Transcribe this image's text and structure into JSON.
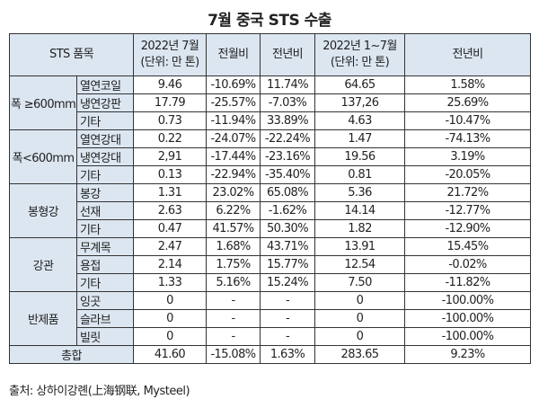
{
  "title": "7월 중국 STS 수출",
  "headers": {
    "item": "STS 품목",
    "jul_line1": "2022년 7월",
    "jul_line2": "(단위: 만 톤)",
    "mom": "전월비",
    "yoy": "전년비",
    "ytd_line1": "2022년 1~7월",
    "ytd_line2": "(단위: 만 톤)",
    "ytd_yoy": "전년비"
  },
  "groups": [
    {
      "name": "폭 ≥600mm",
      "rows": [
        {
          "item": "열연코일",
          "jul": "9.46",
          "mom": "-10.69%",
          "yoy": "11.74%",
          "ytd": "64.65",
          "ytd_yoy": "1.58%"
        },
        {
          "item": "냉연강판",
          "jul": "17.79",
          "mom": "-25.57%",
          "yoy": "-7.03%",
          "ytd": "137,26",
          "ytd_yoy": "25.69%"
        },
        {
          "item": "기타",
          "jul": "0.73",
          "mom": "-11.94%",
          "yoy": "33.89%",
          "ytd": "4.63",
          "ytd_yoy": "-10.47%"
        }
      ]
    },
    {
      "name": "폭<600mm",
      "rows": [
        {
          "item": "열연강대",
          "jul": "0.22",
          "mom": "-24.07%",
          "yoy": "-22.24%",
          "ytd": "1.47",
          "ytd_yoy": "-74.13%"
        },
        {
          "item": "냉연강대",
          "jul": "2,91",
          "mom": "-17.44%",
          "yoy": "-23.16%",
          "ytd": "19.56",
          "ytd_yoy": "3.19%"
        },
        {
          "item": "기타",
          "jul": "0.13",
          "mom": "-22.94%",
          "yoy": "-35.40%",
          "ytd": "0.81",
          "ytd_yoy": "-20.05%"
        }
      ]
    },
    {
      "name": "봉형강",
      "rows": [
        {
          "item": "봉강",
          "jul": "1.31",
          "mom": "23.02%",
          "yoy": "65.08%",
          "ytd": "5.36",
          "ytd_yoy": "21.72%"
        },
        {
          "item": "선재",
          "jul": "2.63",
          "mom": "6.22%",
          "yoy": "-1.62%",
          "ytd": "14.14",
          "ytd_yoy": "-12.77%"
        },
        {
          "item": "기타",
          "jul": "0.47",
          "mom": "41.57%",
          "yoy": "50.30%",
          "ytd": "1.82",
          "ytd_yoy": "-12.90%"
        }
      ]
    },
    {
      "name": "강관",
      "rows": [
        {
          "item": "무계목",
          "jul": "2.47",
          "mom": "1.68%",
          "yoy": "43.71%",
          "ytd": "13.91",
          "ytd_yoy": "15.45%"
        },
        {
          "item": "용접",
          "jul": "2.14",
          "mom": "1.75%",
          "yoy": "15.77%",
          "ytd": "12.54",
          "ytd_yoy": "-0.02%"
        },
        {
          "item": "기타",
          "jul": "1.33",
          "mom": "5.16%",
          "yoy": "15.24%",
          "ytd": "7.50",
          "ytd_yoy": "-11.82%"
        }
      ]
    },
    {
      "name": "반제품",
      "rows": [
        {
          "item": "잉곳",
          "jul": "0",
          "mom": "-",
          "yoy": "-",
          "ytd": "0",
          "ytd_yoy": "-100.00%"
        },
        {
          "item": "슬라브",
          "jul": "0",
          "mom": "-",
          "yoy": "-",
          "ytd": "0",
          "ytd_yoy": "-100.00%"
        },
        {
          "item": "빌릿",
          "jul": "0",
          "mom": "-",
          "yoy": "-",
          "ytd": "0",
          "ytd_yoy": "-100.00%"
        }
      ]
    }
  ],
  "total": {
    "label": "총합",
    "jul": "41.60",
    "mom": "-15.08%",
    "yoy": "1.63%",
    "ytd": "283.65",
    "ytd_yoy": "9.23%"
  },
  "source": "출처: 상하이강롄(上海钢联, Mysteel)"
}
